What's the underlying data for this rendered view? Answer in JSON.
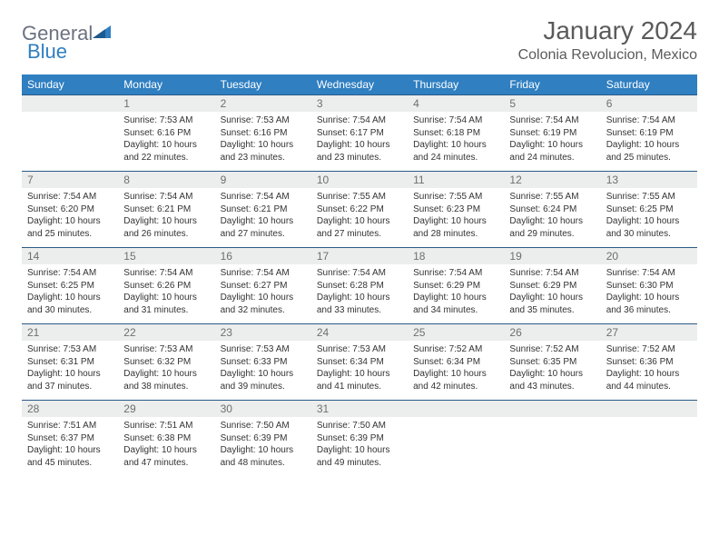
{
  "logo": {
    "text1": "General",
    "text2": "Blue"
  },
  "title": "January 2024",
  "location": "Colonia Revolucion, Mexico",
  "colors": {
    "header_bg": "#2f7fc1",
    "header_text": "#ffffff",
    "daynum_bg": "#eceded",
    "daynum_text": "#6f6f6f",
    "rule": "#2b5b88",
    "body_text": "#333333",
    "title_text": "#5a5a5a",
    "logo_gray": "#6b7280",
    "logo_blue": "#2f7fc1"
  },
  "day_labels": [
    "Sunday",
    "Monday",
    "Tuesday",
    "Wednesday",
    "Thursday",
    "Friday",
    "Saturday"
  ],
  "weeks": [
    [
      null,
      {
        "n": "1",
        "sr": "Sunrise: 7:53 AM",
        "ss": "Sunset: 6:16 PM",
        "dl": "Daylight: 10 hours and 22 minutes."
      },
      {
        "n": "2",
        "sr": "Sunrise: 7:53 AM",
        "ss": "Sunset: 6:16 PM",
        "dl": "Daylight: 10 hours and 23 minutes."
      },
      {
        "n": "3",
        "sr": "Sunrise: 7:54 AM",
        "ss": "Sunset: 6:17 PM",
        "dl": "Daylight: 10 hours and 23 minutes."
      },
      {
        "n": "4",
        "sr": "Sunrise: 7:54 AM",
        "ss": "Sunset: 6:18 PM",
        "dl": "Daylight: 10 hours and 24 minutes."
      },
      {
        "n": "5",
        "sr": "Sunrise: 7:54 AM",
        "ss": "Sunset: 6:19 PM",
        "dl": "Daylight: 10 hours and 24 minutes."
      },
      {
        "n": "6",
        "sr": "Sunrise: 7:54 AM",
        "ss": "Sunset: 6:19 PM",
        "dl": "Daylight: 10 hours and 25 minutes."
      }
    ],
    [
      {
        "n": "7",
        "sr": "Sunrise: 7:54 AM",
        "ss": "Sunset: 6:20 PM",
        "dl": "Daylight: 10 hours and 25 minutes."
      },
      {
        "n": "8",
        "sr": "Sunrise: 7:54 AM",
        "ss": "Sunset: 6:21 PM",
        "dl": "Daylight: 10 hours and 26 minutes."
      },
      {
        "n": "9",
        "sr": "Sunrise: 7:54 AM",
        "ss": "Sunset: 6:21 PM",
        "dl": "Daylight: 10 hours and 27 minutes."
      },
      {
        "n": "10",
        "sr": "Sunrise: 7:55 AM",
        "ss": "Sunset: 6:22 PM",
        "dl": "Daylight: 10 hours and 27 minutes."
      },
      {
        "n": "11",
        "sr": "Sunrise: 7:55 AM",
        "ss": "Sunset: 6:23 PM",
        "dl": "Daylight: 10 hours and 28 minutes."
      },
      {
        "n": "12",
        "sr": "Sunrise: 7:55 AM",
        "ss": "Sunset: 6:24 PM",
        "dl": "Daylight: 10 hours and 29 minutes."
      },
      {
        "n": "13",
        "sr": "Sunrise: 7:55 AM",
        "ss": "Sunset: 6:25 PM",
        "dl": "Daylight: 10 hours and 30 minutes."
      }
    ],
    [
      {
        "n": "14",
        "sr": "Sunrise: 7:54 AM",
        "ss": "Sunset: 6:25 PM",
        "dl": "Daylight: 10 hours and 30 minutes."
      },
      {
        "n": "15",
        "sr": "Sunrise: 7:54 AM",
        "ss": "Sunset: 6:26 PM",
        "dl": "Daylight: 10 hours and 31 minutes."
      },
      {
        "n": "16",
        "sr": "Sunrise: 7:54 AM",
        "ss": "Sunset: 6:27 PM",
        "dl": "Daylight: 10 hours and 32 minutes."
      },
      {
        "n": "17",
        "sr": "Sunrise: 7:54 AM",
        "ss": "Sunset: 6:28 PM",
        "dl": "Daylight: 10 hours and 33 minutes."
      },
      {
        "n": "18",
        "sr": "Sunrise: 7:54 AM",
        "ss": "Sunset: 6:29 PM",
        "dl": "Daylight: 10 hours and 34 minutes."
      },
      {
        "n": "19",
        "sr": "Sunrise: 7:54 AM",
        "ss": "Sunset: 6:29 PM",
        "dl": "Daylight: 10 hours and 35 minutes."
      },
      {
        "n": "20",
        "sr": "Sunrise: 7:54 AM",
        "ss": "Sunset: 6:30 PM",
        "dl": "Daylight: 10 hours and 36 minutes."
      }
    ],
    [
      {
        "n": "21",
        "sr": "Sunrise: 7:53 AM",
        "ss": "Sunset: 6:31 PM",
        "dl": "Daylight: 10 hours and 37 minutes."
      },
      {
        "n": "22",
        "sr": "Sunrise: 7:53 AM",
        "ss": "Sunset: 6:32 PM",
        "dl": "Daylight: 10 hours and 38 minutes."
      },
      {
        "n": "23",
        "sr": "Sunrise: 7:53 AM",
        "ss": "Sunset: 6:33 PM",
        "dl": "Daylight: 10 hours and 39 minutes."
      },
      {
        "n": "24",
        "sr": "Sunrise: 7:53 AM",
        "ss": "Sunset: 6:34 PM",
        "dl": "Daylight: 10 hours and 41 minutes."
      },
      {
        "n": "25",
        "sr": "Sunrise: 7:52 AM",
        "ss": "Sunset: 6:34 PM",
        "dl": "Daylight: 10 hours and 42 minutes."
      },
      {
        "n": "26",
        "sr": "Sunrise: 7:52 AM",
        "ss": "Sunset: 6:35 PM",
        "dl": "Daylight: 10 hours and 43 minutes."
      },
      {
        "n": "27",
        "sr": "Sunrise: 7:52 AM",
        "ss": "Sunset: 6:36 PM",
        "dl": "Daylight: 10 hours and 44 minutes."
      }
    ],
    [
      {
        "n": "28",
        "sr": "Sunrise: 7:51 AM",
        "ss": "Sunset: 6:37 PM",
        "dl": "Daylight: 10 hours and 45 minutes."
      },
      {
        "n": "29",
        "sr": "Sunrise: 7:51 AM",
        "ss": "Sunset: 6:38 PM",
        "dl": "Daylight: 10 hours and 47 minutes."
      },
      {
        "n": "30",
        "sr": "Sunrise: 7:50 AM",
        "ss": "Sunset: 6:39 PM",
        "dl": "Daylight: 10 hours and 48 minutes."
      },
      {
        "n": "31",
        "sr": "Sunrise: 7:50 AM",
        "ss": "Sunset: 6:39 PM",
        "dl": "Daylight: 10 hours and 49 minutes."
      },
      null,
      null,
      null
    ]
  ]
}
